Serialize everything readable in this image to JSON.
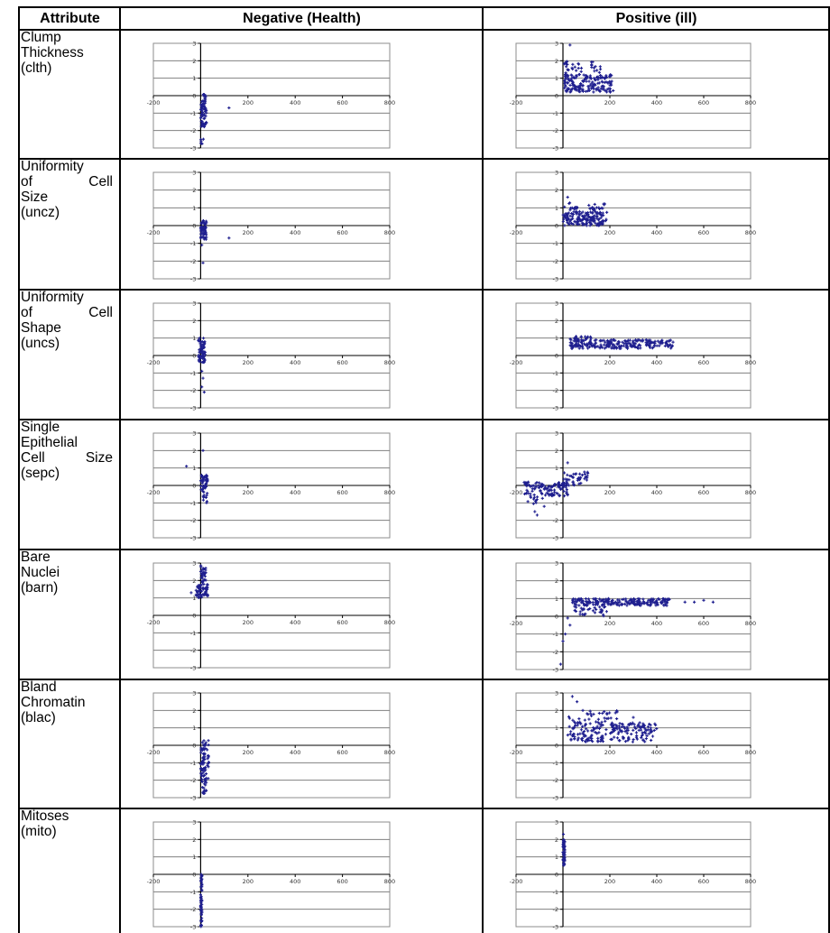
{
  "header": {
    "attribute": "Attribute",
    "negative": "Negative (Health)",
    "positive": "Positive (ill)"
  },
  "x_tick_labels": [
    "-200",
    "200",
    "400",
    "600",
    "800"
  ],
  "y_tick_labels": [
    "3",
    "2",
    "1",
    "0",
    "-1",
    "-2",
    "-3"
  ],
  "rows": [
    {
      "label_lines": [
        "Clump",
        "Thickness",
        "(clth)"
      ]
    },
    {
      "label_lines": [
        "Uniformity",
        "of      Cell",
        "Size",
        "(uncz)"
      ]
    },
    {
      "label_lines": [
        "Uniformity",
        "of      Cell",
        "Shape",
        "(uncs)"
      ]
    },
    {
      "label_lines": [
        "Single",
        "Epithelial",
        "Cell  Size",
        "(sepc)"
      ]
    },
    {
      "label_lines": [
        "Bare",
        "Nuclei",
        "(barn)"
      ]
    },
    {
      "label_lines": [
        "Bland",
        "Chromatin",
        "(blac)"
      ]
    },
    {
      "label_lines": [
        "Mitoses",
        "(mito)"
      ]
    }
  ],
  "colors": {
    "marker": "#1f1f8f",
    "gridline": "#808080",
    "frame": "#8c8c8c"
  },
  "chart_data": [
    {
      "type": "scatter",
      "row": 0,
      "panel": "negative",
      "xlim": [
        -200,
        800
      ],
      "ylim": [
        -3,
        3
      ],
      "x_ticks": [
        -200,
        0,
        200,
        400,
        600,
        800
      ],
      "y_ticks": [
        -3,
        -2,
        -1,
        0,
        1,
        2,
        3
      ],
      "clusters": [
        {
          "x": [
            0,
            25
          ],
          "y": [
            -1.8,
            0.1
          ],
          "n": 70
        },
        {
          "x": [
            0,
            12
          ],
          "y": [
            -2.8,
            -2.4
          ],
          "n": 6
        }
      ],
      "points": [
        [
          120,
          -0.7
        ],
        [
          20,
          -0.7
        ]
      ]
    },
    {
      "type": "scatter",
      "row": 0,
      "panel": "positive",
      "xlim": [
        -200,
        800
      ],
      "ylim": [
        -3,
        3
      ],
      "x_ticks": [
        -200,
        0,
        200,
        400,
        600,
        800
      ],
      "y_ticks": [
        -3,
        -2,
        -1,
        0,
        1,
        2,
        3
      ],
      "clusters": [
        {
          "x": [
            5,
            215
          ],
          "y": [
            0.2,
            1.2
          ],
          "n": 170
        },
        {
          "x": [
            5,
            80
          ],
          "y": [
            1.0,
            2.0
          ],
          "n": 30
        },
        {
          "x": [
            120,
            160
          ],
          "y": [
            1.2,
            2.0
          ],
          "n": 12
        }
      ],
      "points": [
        [
          30,
          2.9
        ]
      ]
    },
    {
      "type": "scatter",
      "row": 1,
      "panel": "negative",
      "xlim": [
        -200,
        800
      ],
      "ylim": [
        -3,
        3
      ],
      "x_ticks": [
        -200,
        0,
        200,
        400,
        600,
        800
      ],
      "y_ticks": [
        -3,
        -2,
        -1,
        0,
        1,
        2,
        3
      ],
      "clusters": [
        {
          "x": [
            0,
            25
          ],
          "y": [
            -0.8,
            0.3
          ],
          "n": 60
        }
      ],
      "points": [
        [
          120,
          -0.7
        ],
        [
          10,
          -2.1
        ],
        [
          5,
          -1.1
        ]
      ]
    },
    {
      "type": "scatter",
      "row": 1,
      "panel": "positive",
      "xlim": [
        -200,
        800
      ],
      "ylim": [
        -3,
        3
      ],
      "x_ticks": [
        -200,
        0,
        200,
        400,
        600,
        800
      ],
      "y_ticks": [
        -3,
        -2,
        -1,
        0,
        1,
        2,
        3
      ],
      "clusters": [
        {
          "x": [
            0,
            190
          ],
          "y": [
            0.0,
            0.8
          ],
          "n": 160
        },
        {
          "x": [
            5,
            60
          ],
          "y": [
            0.8,
            1.3
          ],
          "n": 14
        },
        {
          "x": [
            110,
            180
          ],
          "y": [
            0.8,
            1.3
          ],
          "n": 18
        }
      ],
      "points": [
        [
          20,
          1.6
        ]
      ]
    },
    {
      "type": "scatter",
      "row": 2,
      "panel": "negative",
      "xlim": [
        -200,
        800
      ],
      "ylim": [
        -3,
        3
      ],
      "x_ticks": [
        -200,
        0,
        200,
        400,
        600,
        800
      ],
      "y_ticks": [
        -3,
        -2,
        -1,
        0,
        1,
        2,
        3
      ],
      "clusters": [
        {
          "x": [
            -10,
            20
          ],
          "y": [
            -0.4,
            1.0
          ],
          "n": 65
        }
      ],
      "points": [
        [
          5,
          -0.9
        ],
        [
          10,
          -1.3
        ],
        [
          5,
          -1.8
        ],
        [
          15,
          -2.1
        ]
      ]
    },
    {
      "type": "scatter",
      "row": 2,
      "panel": "positive",
      "xlim": [
        -200,
        800
      ],
      "ylim": [
        -3,
        3
      ],
      "x_ticks": [
        -200,
        0,
        200,
        400,
        600,
        800
      ],
      "y_ticks": [
        -3,
        -2,
        -1,
        0,
        1,
        2,
        3
      ],
      "clusters": [
        {
          "x": [
            30,
            470
          ],
          "y": [
            0.4,
            0.9
          ],
          "n": 230
        },
        {
          "x": [
            30,
            120
          ],
          "y": [
            0.8,
            1.1
          ],
          "n": 25
        }
      ],
      "points": []
    },
    {
      "type": "scatter",
      "row": 3,
      "panel": "negative",
      "xlim": [
        -200,
        800
      ],
      "ylim": [
        -3,
        3
      ],
      "x_ticks": [
        -200,
        0,
        200,
        400,
        600,
        800
      ],
      "y_ticks": [
        -3,
        -2,
        -1,
        0,
        1,
        2,
        3
      ],
      "clusters": [
        {
          "x": [
            0,
            30
          ],
          "y": [
            -0.4,
            0.6
          ],
          "n": 45
        },
        {
          "x": [
            10,
            30
          ],
          "y": [
            -1.0,
            -0.3
          ],
          "n": 10
        }
      ],
      "points": [
        [
          -60,
          1.1
        ],
        [
          10,
          2.0
        ],
        [
          25,
          -1.0
        ]
      ]
    },
    {
      "type": "scatter",
      "row": 3,
      "panel": "positive",
      "xlim": [
        -200,
        800
      ],
      "ylim": [
        -3,
        3
      ],
      "x_ticks": [
        -200,
        0,
        200,
        400,
        600,
        800
      ],
      "y_ticks": [
        -3,
        -2,
        -1,
        0,
        1,
        2,
        3
      ],
      "clusters": [
        {
          "x": [
            -170,
            20
          ],
          "y": [
            -0.6,
            0.2
          ],
          "n": 110
        },
        {
          "x": [
            0,
            110
          ],
          "y": [
            0.0,
            0.8
          ],
          "n": 45
        },
        {
          "x": [
            -150,
            -80
          ],
          "y": [
            -1.1,
            -0.6
          ],
          "n": 12
        }
      ],
      "points": [
        [
          20,
          1.3
        ],
        [
          -120,
          -1.5
        ],
        [
          -110,
          -1.7
        ],
        [
          -80,
          -1.2
        ]
      ]
    },
    {
      "type": "scatter",
      "row": 4,
      "panel": "negative",
      "xlim": [
        -200,
        800
      ],
      "ylim": [
        -3,
        3
      ],
      "x_ticks": [
        -200,
        0,
        200,
        400,
        600,
        800
      ],
      "y_ticks": [
        -3,
        -2,
        -1,
        0,
        1,
        2,
        3
      ],
      "clusters": [
        {
          "x": [
            -20,
            30
          ],
          "y": [
            1.0,
            1.8
          ],
          "n": 60
        },
        {
          "x": [
            0,
            25
          ],
          "y": [
            1.8,
            2.9
          ],
          "n": 30
        }
      ],
      "points": [
        [
          -40,
          1.3
        ]
      ]
    },
    {
      "type": "scatter",
      "row": 4,
      "panel": "positive",
      "xlim": [
        -200,
        800
      ],
      "ylim": [
        -3,
        3
      ],
      "x_ticks": [
        -200,
        0,
        200,
        400,
        600,
        800
      ],
      "y_ticks": [
        -3,
        -2,
        -1,
        0,
        1,
        2,
        3
      ],
      "clusters": [
        {
          "x": [
            40,
            460
          ],
          "y": [
            0.6,
            1.0
          ],
          "n": 220
        },
        {
          "x": [
            40,
            200
          ],
          "y": [
            0.0,
            0.7
          ],
          "n": 35
        }
      ],
      "points": [
        [
          520,
          0.8
        ],
        [
          560,
          0.8
        ],
        [
          600,
          0.9
        ],
        [
          640,
          0.8
        ],
        [
          30,
          -0.5
        ],
        [
          10,
          -1.0
        ],
        [
          0,
          -1.4
        ],
        [
          -10,
          -2.7
        ],
        [
          20,
          -0.1
        ]
      ]
    },
    {
      "type": "scatter",
      "row": 5,
      "panel": "negative",
      "xlim": [
        -200,
        800
      ],
      "ylim": [
        -3,
        3
      ],
      "x_ticks": [
        -200,
        0,
        200,
        400,
        600,
        800
      ],
      "y_ticks": [
        -3,
        -2,
        -1,
        0,
        1,
        2,
        3
      ],
      "clusters": [
        {
          "x": [
            0,
            35
          ],
          "y": [
            -2.3,
            0.3
          ],
          "n": 80
        },
        {
          "x": [
            0,
            25
          ],
          "y": [
            -2.9,
            -2.4
          ],
          "n": 10
        }
      ],
      "points": []
    },
    {
      "type": "scatter",
      "row": 5,
      "panel": "positive",
      "xlim": [
        -200,
        800
      ],
      "ylim": [
        -3,
        3
      ],
      "x_ticks": [
        -200,
        0,
        200,
        400,
        600,
        800
      ],
      "y_ticks": [
        -3,
        -2,
        -1,
        0,
        1,
        2,
        3
      ],
      "clusters": [
        {
          "x": [
            20,
            400
          ],
          "y": [
            0.2,
            1.3
          ],
          "n": 200
        },
        {
          "x": [
            20,
            250
          ],
          "y": [
            1.3,
            2.0
          ],
          "n": 35
        }
      ],
      "points": [
        [
          40,
          2.8
        ],
        [
          60,
          2.5
        ],
        [
          300,
          1.6
        ]
      ]
    },
    {
      "type": "scatter",
      "row": 6,
      "panel": "negative",
      "xlim": [
        -200,
        800
      ],
      "ylim": [
        -3,
        3
      ],
      "x_ticks": [
        -200,
        0,
        200,
        400,
        600,
        800
      ],
      "y_ticks": [
        -3,
        -2,
        -1,
        0,
        1,
        2,
        3
      ],
      "clusters": [
        {
          "x": [
            0,
            6
          ],
          "y": [
            -3.0,
            0.0
          ],
          "n": 60
        }
      ],
      "points": []
    },
    {
      "type": "scatter",
      "row": 6,
      "panel": "positive",
      "xlim": [
        -200,
        800
      ],
      "ylim": [
        -3,
        3
      ],
      "x_ticks": [
        -200,
        0,
        200,
        400,
        600,
        800
      ],
      "y_ticks": [
        -3,
        -2,
        -1,
        0,
        1,
        2,
        3
      ],
      "clusters": [
        {
          "x": [
            0,
            8
          ],
          "y": [
            0.5,
            2.0
          ],
          "n": 60
        }
      ],
      "points": [
        [
          2,
          2.3
        ]
      ]
    }
  ]
}
